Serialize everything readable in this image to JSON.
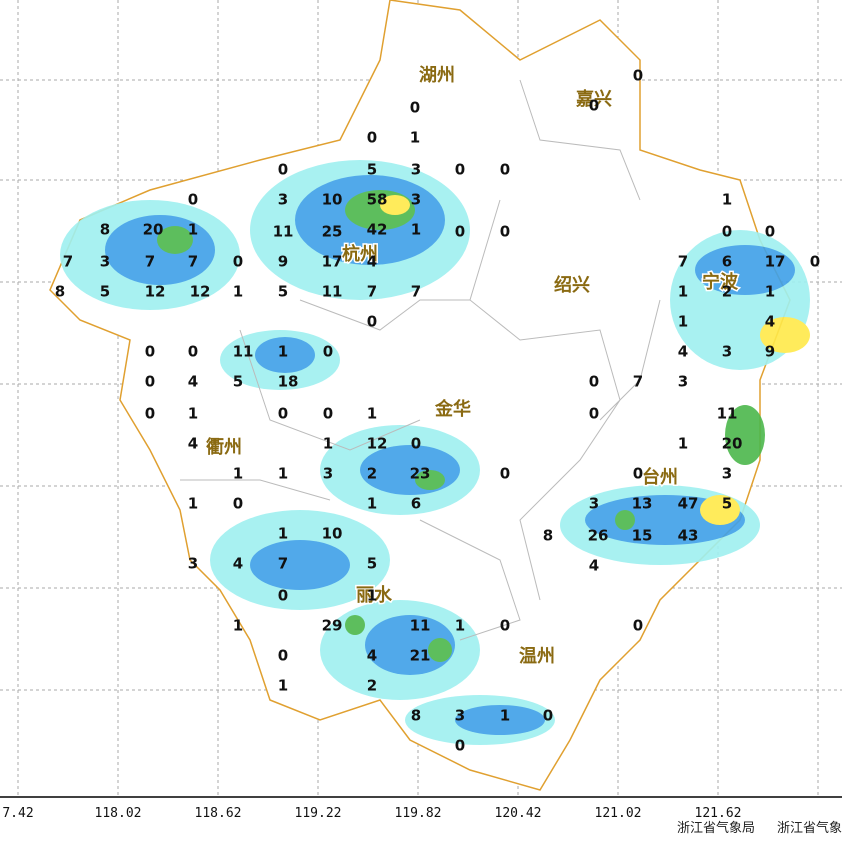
{
  "map": {
    "cities": [
      "湖州",
      "嘉兴",
      "杭州",
      "绍兴",
      "宁波",
      "金华",
      "衢州",
      "台州",
      "丽水",
      "温州"
    ],
    "stations": [
      0,
      0,
      1,
      0,
      5,
      3,
      0,
      0,
      0,
      0,
      0,
      3,
      10,
      58,
      3,
      8,
      20,
      1,
      11,
      25,
      42,
      1,
      0,
      0,
      1,
      0,
      0,
      7,
      3,
      7,
      7,
      0,
      9,
      17,
      4,
      7,
      6,
      17,
      0,
      8,
      5,
      12,
      12,
      1,
      5,
      11,
      7,
      7,
      1,
      2,
      1,
      0,
      1,
      4,
      0,
      0,
      11,
      1,
      0,
      4,
      3,
      9,
      0,
      4,
      5,
      18,
      0,
      7,
      3,
      0,
      1,
      0,
      0,
      1,
      0,
      11,
      4,
      1,
      12,
      0,
      1,
      20,
      1,
      1,
      3,
      2,
      23,
      0,
      0,
      3,
      1,
      0,
      1,
      6,
      3,
      13,
      47,
      5,
      1,
      10,
      8,
      26,
      15,
      43,
      3,
      4,
      7,
      5,
      4,
      0,
      1,
      1,
      29,
      11,
      1,
      0,
      0,
      0,
      4,
      21,
      1,
      2,
      8,
      3,
      1,
      0,
      0
    ],
    "x_axis": [
      "7.42",
      "118.02",
      "118.62",
      "119.22",
      "119.82",
      "120.42",
      "121.02",
      "121.62"
    ],
    "footer": [
      "浙江省气象局",
      "浙江省气象"
    ]
  }
}
